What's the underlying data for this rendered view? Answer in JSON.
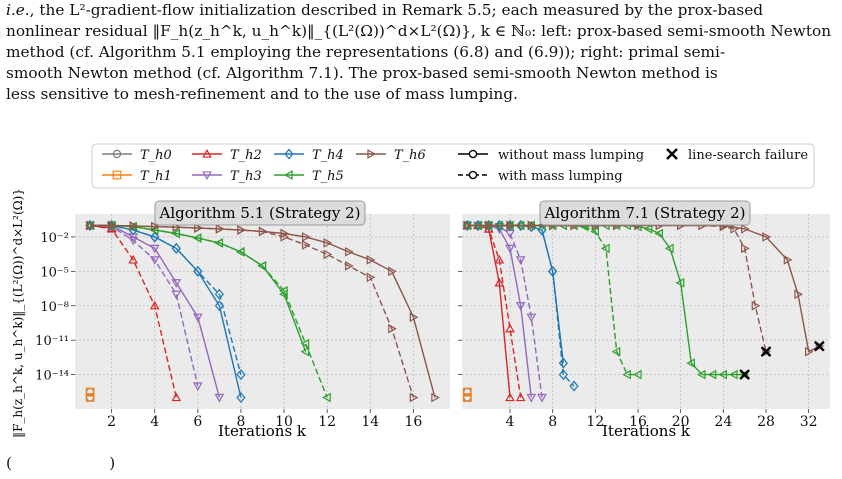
{
  "caption": {
    "line1": ", the L²-gradient-flow initialization described in Remark 5.5; each measured by the prox-based",
    "line1_italic": "i.e.",
    "line2": "nonlinear residual ‖F_h(z_h^k, u_h^k)‖_{(L²(Ω))^d×L²(Ω)}, k ∈ ℕ₀: left: prox-based semi-smooth Newton",
    "line3": "method (cf. Algorithm 5.1 employing the representations (6.8) and (6.9)); right: primal semi-",
    "line4": "smooth Newton method (cf. Algorithm 7.1). The prox-based semi-smooth Newton method is",
    "line5": "less sensitive to mesh-refinement and to the use of mass lumping."
  },
  "bottom_fragment": "(                    )",
  "legend": {
    "meshes": [
      "T_h0",
      "T_h1",
      "T_h2",
      "T_h3",
      "T_h4",
      "T_h5",
      "T_h6"
    ],
    "without": "without mass lumping",
    "with": "with mass lumping",
    "failure": "line-search failure"
  },
  "colors": {
    "h0": "#7f7f7f",
    "h1": "#ff7f0e",
    "h2": "#d62728",
    "h3": "#9467bd",
    "h4": "#1f77b4",
    "h5": "#2ca02c",
    "h6": "#8c564b"
  },
  "chart_data": [
    {
      "type": "line",
      "title": "Algorithm 5.1 (Strategy 2)",
      "xlabel": "Iterations k",
      "ylabel": "‖F_h(z_h^k, u_h^k)‖_{(L²(Ω))^d×L²(Ω)}",
      "yscale": "log",
      "xlim": [
        0.3,
        17.7
      ],
      "ylim": [
        1e-17,
        1
      ],
      "xticks": [
        2,
        4,
        6,
        8,
        10,
        12,
        14,
        16
      ],
      "yticks": [
        0.01,
        1e-05,
        1e-08,
        1e-11,
        1e-14
      ],
      "ytick_labels": [
        "10⁻²",
        "10⁻⁵",
        "10⁻⁸",
        "10⁻¹¹",
        "10⁻¹⁴"
      ],
      "grid": true,
      "series": [
        {
          "name": "T_h0 without",
          "mesh": "h0",
          "dash": false,
          "x": [
            1
          ],
          "y": [
            1e-16
          ]
        },
        {
          "name": "T_h0 with",
          "mesh": "h0",
          "dash": true,
          "x": [
            1
          ],
          "y": [
            3e-16
          ]
        },
        {
          "name": "T_h1 without",
          "mesh": "h1",
          "dash": false,
          "x": [
            1
          ],
          "y": [
            1e-16
          ]
        },
        {
          "name": "T_h1 with",
          "mesh": "h1",
          "dash": true,
          "x": [
            1
          ],
          "y": [
            3e-16
          ]
        },
        {
          "name": "T_h2 without",
          "mesh": "h2",
          "dash": false,
          "x": [
            1,
            2
          ],
          "y": [
            0.1,
            0.06
          ]
        },
        {
          "name": "T_h2 with",
          "mesh": "h2",
          "dash": true,
          "x": [
            1,
            2,
            3,
            4,
            5
          ],
          "y": [
            0.1,
            0.05,
            0.0001,
            1e-08,
            1e-16
          ]
        },
        {
          "name": "T_h3 without",
          "mesh": "h3",
          "dash": false,
          "x": [
            1,
            2,
            3,
            4,
            5,
            6,
            7
          ],
          "y": [
            0.1,
            0.1,
            0.01,
            0.001,
            1e-06,
            1e-09,
            1e-16
          ]
        },
        {
          "name": "T_h3 with",
          "mesh": "h3",
          "dash": true,
          "x": [
            1,
            2,
            3,
            4,
            5,
            6
          ],
          "y": [
            0.1,
            0.08,
            0.005,
            0.0001,
            1e-07,
            1e-15
          ]
        },
        {
          "name": "T_h4 without",
          "mesh": "h4",
          "dash": false,
          "x": [
            1,
            2,
            3,
            4,
            5,
            6,
            7,
            8
          ],
          "y": [
            0.1,
            0.1,
            0.04,
            0.01,
            0.001,
            1e-05,
            1e-08,
            1e-16
          ]
        },
        {
          "name": "T_h4 with",
          "mesh": "h4",
          "dash": true,
          "x": [
            1,
            2,
            3,
            4,
            5,
            6,
            7,
            8
          ],
          "y": [
            0.1,
            0.1,
            0.04,
            0.01,
            0.001,
            1e-05,
            1e-07,
            1e-14
          ]
        },
        {
          "name": "T_h5 without",
          "mesh": "h5",
          "dash": false,
          "x": [
            1,
            2,
            3,
            4,
            5,
            6,
            7,
            8,
            9,
            10,
            11
          ],
          "y": [
            0.1,
            0.1,
            0.08,
            0.04,
            0.02,
            0.008,
            0.003,
            0.0005,
            3e-05,
            1e-07,
            1e-12
          ]
        },
        {
          "name": "T_h5 with",
          "mesh": "h5",
          "dash": true,
          "x": [
            1,
            2,
            3,
            4,
            5,
            6,
            7,
            8,
            9,
            10,
            11,
            12
          ],
          "y": [
            0.1,
            0.1,
            0.08,
            0.04,
            0.02,
            0.008,
            0.003,
            0.0005,
            3e-05,
            2e-07,
            5e-12,
            1e-16
          ]
        },
        {
          "name": "T_h6 without",
          "mesh": "h6",
          "dash": false,
          "x": [
            1,
            2,
            3,
            4,
            5,
            6,
            7,
            8,
            9,
            10,
            11,
            12,
            13,
            14,
            15,
            16,
            17
          ],
          "y": [
            0.1,
            0.1,
            0.09,
            0.08,
            0.07,
            0.06,
            0.05,
            0.04,
            0.03,
            0.02,
            0.01,
            0.003,
            0.0005,
            0.0001,
            1e-05,
            1e-09,
            1e-16
          ]
        },
        {
          "name": "T_h6 with",
          "mesh": "h6",
          "dash": true,
          "x": [
            1,
            2,
            3,
            4,
            5,
            6,
            7,
            8,
            9,
            10,
            11,
            12,
            13,
            14,
            15,
            16
          ],
          "y": [
            0.1,
            0.1,
            0.09,
            0.08,
            0.07,
            0.06,
            0.05,
            0.04,
            0.03,
            0.01,
            0.002,
            0.0003,
            3e-05,
            3e-06,
            1e-10,
            1e-16
          ]
        }
      ]
    },
    {
      "type": "line",
      "title": "Algorithm 7.1 (Strategy 2)",
      "xlabel": "Iterations k",
      "yscale": "log",
      "xlim": [
        -0.5,
        34
      ],
      "ylim": [
        1e-17,
        1
      ],
      "xticks": [
        4,
        8,
        12,
        16,
        20,
        24,
        28,
        32
      ],
      "grid": true,
      "failures": [
        {
          "x": 26,
          "y": 1e-14
        },
        {
          "x": 28,
          "y": 1e-12
        },
        {
          "x": 33,
          "y": 3e-12
        }
      ],
      "series": [
        {
          "name": "T_h0 without",
          "mesh": "h0",
          "dash": false,
          "x": [
            0
          ],
          "y": [
            1e-16
          ]
        },
        {
          "name": "T_h0 with",
          "mesh": "h0",
          "dash": true,
          "x": [
            0
          ],
          "y": [
            3e-16
          ]
        },
        {
          "name": "T_h1 without",
          "mesh": "h1",
          "dash": false,
          "x": [
            0
          ],
          "y": [
            1e-16
          ]
        },
        {
          "name": "T_h1 with",
          "mesh": "h1",
          "dash": true,
          "x": [
            0
          ],
          "y": [
            3e-16
          ]
        },
        {
          "name": "T_h2 without",
          "mesh": "h2",
          "dash": false,
          "x": [
            0,
            1,
            2,
            3,
            4
          ],
          "y": [
            0.1,
            0.1,
            0.05,
            1e-06,
            1e-16
          ]
        },
        {
          "name": "T_h2 with",
          "mesh": "h2",
          "dash": true,
          "x": [
            0,
            1,
            2,
            3,
            4,
            5
          ],
          "y": [
            0.1,
            0.1,
            0.05,
            0.0001,
            1e-10,
            1e-16
          ]
        },
        {
          "name": "T_h3 without",
          "mesh": "h3",
          "dash": false,
          "x": [
            0,
            1,
            2,
            3,
            4,
            5,
            6
          ],
          "y": [
            0.1,
            0.1,
            0.1,
            0.05,
            0.001,
            1e-08,
            1e-16
          ]
        },
        {
          "name": "T_h3 with",
          "mesh": "h3",
          "dash": true,
          "x": [
            0,
            1,
            2,
            3,
            4,
            5,
            6,
            7
          ],
          "y": [
            0.1,
            0.1,
            0.1,
            0.08,
            0.02,
            0.0001,
            1e-09,
            1e-16
          ]
        },
        {
          "name": "T_h4 without",
          "mesh": "h4",
          "dash": false,
          "x": [
            0,
            1,
            2,
            3,
            4,
            5,
            6,
            7,
            8,
            9
          ],
          "y": [
            0.1,
            0.1,
            0.1,
            0.1,
            0.1,
            0.1,
            0.08,
            0.04,
            1e-05,
            1e-13
          ]
        },
        {
          "name": "T_h4 with",
          "mesh": "h4",
          "dash": true,
          "x": [
            0,
            1,
            2,
            3,
            4,
            5,
            6,
            7,
            8,
            9,
            10
          ],
          "y": [
            0.1,
            0.1,
            0.1,
            0.1,
            0.1,
            0.1,
            0.08,
            0.04,
            1e-05,
            1e-14,
            1e-15
          ]
        },
        {
          "name": "T_h5 without",
          "mesh": "h5",
          "dash": false,
          "x": [
            0,
            1,
            2,
            3,
            4,
            5,
            6,
            7,
            8,
            9,
            10,
            11,
            12,
            13,
            14,
            15,
            16,
            17,
            18,
            19,
            20,
            21,
            22,
            23,
            24,
            25,
            26
          ],
          "y": [
            0.1,
            0.1,
            0.1,
            0.1,
            0.1,
            0.1,
            0.1,
            0.1,
            0.1,
            0.1,
            0.1,
            0.1,
            0.1,
            0.1,
            0.1,
            0.1,
            0.08,
            0.05,
            0.02,
            0.001,
            1e-06,
            1e-13,
            1e-14,
            1e-14,
            1e-14,
            1e-14,
            1e-14
          ]
        },
        {
          "name": "T_h5 with",
          "mesh": "h5",
          "dash": true,
          "x": [
            0,
            1,
            2,
            3,
            4,
            5,
            6,
            7,
            8,
            9,
            10,
            11,
            12,
            13,
            14,
            15,
            16
          ],
          "y": [
            0.1,
            0.1,
            0.1,
            0.1,
            0.1,
            0.1,
            0.1,
            0.1,
            0.1,
            0.1,
            0.1,
            0.08,
            0.03,
            0.001,
            1e-12,
            1e-14,
            1e-14
          ]
        },
        {
          "name": "T_h6 without",
          "mesh": "h6",
          "dash": false,
          "x": [
            0,
            2,
            4,
            6,
            8,
            10,
            12,
            14,
            16,
            18,
            20,
            22,
            24,
            26,
            28,
            30,
            31,
            32,
            33
          ],
          "y": [
            0.1,
            0.1,
            0.1,
            0.1,
            0.1,
            0.1,
            0.1,
            0.1,
            0.1,
            0.1,
            0.1,
            0.1,
            0.1,
            0.05,
            0.01,
            0.0001,
            1e-07,
            1e-12,
            3e-12
          ]
        },
        {
          "name": "T_h6 with",
          "mesh": "h6",
          "dash": true,
          "x": [
            0,
            2,
            4,
            6,
            8,
            10,
            12,
            14,
            16,
            18,
            20,
            22,
            24,
            25,
            26,
            27,
            28
          ],
          "y": [
            0.1,
            0.1,
            0.1,
            0.1,
            0.1,
            0.1,
            0.1,
            0.1,
            0.1,
            0.1,
            0.1,
            0.1,
            0.08,
            0.05,
            0.001,
            1e-08,
            1e-12
          ]
        }
      ]
    }
  ]
}
